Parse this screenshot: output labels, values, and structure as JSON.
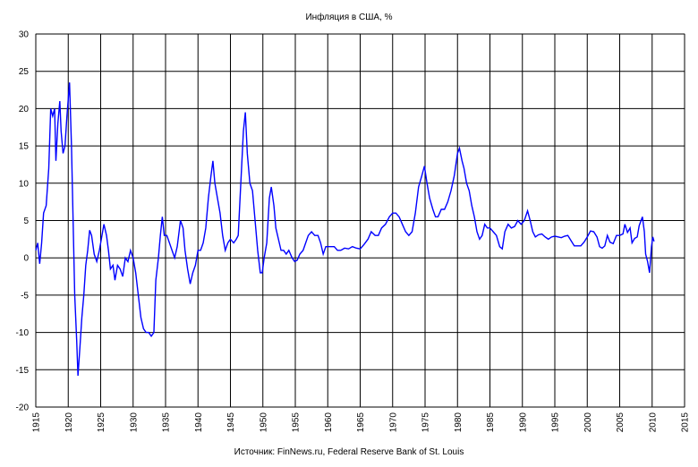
{
  "chart_data": {
    "type": "line",
    "title": "Инфляция в США, %",
    "source": "Источник: FinNews.ru, Federal Reserve Bank of St. Louis",
    "xlim": [
      1915,
      2015
    ],
    "xticks": [
      1915,
      1920,
      1925,
      1930,
      1935,
      1940,
      1945,
      1950,
      1955,
      1960,
      1965,
      1970,
      1975,
      1980,
      1985,
      1990,
      1995,
      2000,
      2005,
      2010,
      2015
    ],
    "ylim": [
      -20,
      30
    ],
    "yticks": [
      -20,
      -15,
      -10,
      -5,
      0,
      5,
      10,
      15,
      20,
      25,
      30
    ],
    "grid": true,
    "color": "#0000ff",
    "x": [
      1915.0,
      1915.3,
      1915.6,
      1915.9,
      1916.2,
      1916.6,
      1917.0,
      1917.3,
      1917.6,
      1917.9,
      1918.1,
      1918.4,
      1918.7,
      1918.9,
      1919.2,
      1919.5,
      1919.8,
      1920.2,
      1920.5,
      1920.8,
      1921.0,
      1921.3,
      1921.5,
      1921.8,
      1922.1,
      1922.4,
      1922.7,
      1923.0,
      1923.3,
      1923.6,
      1924.0,
      1924.4,
      1924.8,
      1925.2,
      1925.5,
      1925.9,
      1926.2,
      1926.5,
      1926.9,
      1927.2,
      1927.6,
      1928.0,
      1928.4,
      1928.8,
      1929.2,
      1929.6,
      1930.0,
      1930.4,
      1930.8,
      1931.2,
      1931.6,
      1932.0,
      1932.4,
      1932.8,
      1933.2,
      1933.5,
      1933.9,
      1934.2,
      1934.5,
      1934.8,
      1935.2,
      1935.6,
      1936.0,
      1936.4,
      1936.8,
      1937.3,
      1937.7,
      1938.0,
      1938.4,
      1938.8,
      1939.2,
      1939.6,
      1940.0,
      1940.4,
      1940.8,
      1941.2,
      1941.6,
      1942.0,
      1942.3,
      1942.6,
      1943.0,
      1943.4,
      1943.8,
      1944.2,
      1944.6,
      1945.0,
      1945.5,
      1945.9,
      1946.2,
      1946.6,
      1947.0,
      1947.3,
      1947.6,
      1948.0,
      1948.4,
      1948.8,
      1949.2,
      1949.6,
      1949.9,
      1950.2,
      1950.6,
      1951.0,
      1951.3,
      1951.7,
      1952.0,
      1952.4,
      1952.8,
      1953.2,
      1953.6,
      1954.0,
      1954.5,
      1954.9,
      1955.3,
      1955.7,
      1956.2,
      1956.6,
      1957.0,
      1957.5,
      1958.0,
      1958.5,
      1958.9,
      1959.3,
      1959.7,
      1960.2,
      1960.6,
      1961.0,
      1961.5,
      1962.0,
      1962.6,
      1963.2,
      1963.8,
      1964.4,
      1965.0,
      1965.6,
      1966.2,
      1966.7,
      1967.3,
      1967.8,
      1968.3,
      1968.9,
      1969.5,
      1970.0,
      1970.5,
      1971.0,
      1971.5,
      1972.0,
      1972.5,
      1973.0,
      1973.5,
      1974.0,
      1974.5,
      1974.9,
      1975.3,
      1975.7,
      1976.2,
      1976.6,
      1977.0,
      1977.5,
      1978.0,
      1978.5,
      1979.0,
      1979.5,
      1980.0,
      1980.3,
      1980.7,
      1981.0,
      1981.4,
      1981.8,
      1982.2,
      1982.6,
      1983.0,
      1983.4,
      1983.8,
      1984.2,
      1984.6,
      1985.0,
      1985.5,
      1986.0,
      1986.5,
      1986.9,
      1987.3,
      1987.8,
      1988.3,
      1988.8,
      1989.3,
      1989.8,
      1990.3,
      1990.8,
      1991.2,
      1991.6,
      1992.0,
      1992.5,
      1993.0,
      1993.5,
      1994.0,
      1994.5,
      1995.0,
      1995.5,
      1996.0,
      1996.5,
      1997.0,
      1997.5,
      1998.0,
      1998.5,
      1999.0,
      1999.5,
      2000.0,
      2000.5,
      2001.0,
      2001.5,
      2001.9,
      2002.3,
      2002.7,
      2003.1,
      2003.5,
      2004.0,
      2004.5,
      2005.0,
      2005.5,
      2005.8,
      2006.2,
      2006.6,
      2006.9,
      2007.3,
      2007.7,
      2008.0,
      2008.5,
      2008.8,
      2009.0,
      2009.3,
      2009.6,
      2009.9,
      2010.1,
      2010.3
    ],
    "values": [
      1.0,
      2.0,
      -0.8,
      2.0,
      6.0,
      7.0,
      12.0,
      20.0,
      19.0,
      20.0,
      13.0,
      18.0,
      21.0,
      17.0,
      14.0,
      15.0,
      19.0,
      23.5,
      15.0,
      3.0,
      -5.0,
      -11.0,
      -15.8,
      -12.0,
      -8.0,
      -5.0,
      -1.0,
      1.0,
      3.7,
      3.0,
      0.5,
      -0.5,
      1.0,
      3.0,
      4.5,
      3.0,
      1.0,
      -1.5,
      -1.0,
      -3.0,
      -1.0,
      -1.5,
      -2.5,
      0.0,
      -0.5,
      1.0,
      0.0,
      -2.0,
      -5.0,
      -8.0,
      -9.5,
      -10.0,
      -10.0,
      -10.5,
      -10.0,
      -3.0,
      0.0,
      3.0,
      5.5,
      3.0,
      3.0,
      2.0,
      1.0,
      0.0,
      1.5,
      5.0,
      4.0,
      1.0,
      -1.5,
      -3.5,
      -2.0,
      -1.0,
      1.0,
      1.0,
      2.0,
      4.0,
      8.0,
      11.0,
      13.0,
      10.0,
      8.0,
      6.0,
      3.0,
      1.0,
      2.0,
      2.5,
      2.0,
      2.5,
      3.0,
      10.0,
      17.0,
      19.5,
      14.0,
      10.0,
      9.0,
      5.0,
      1.0,
      -2.0,
      -2.0,
      0.0,
      2.0,
      8.0,
      9.5,
      7.0,
      4.0,
      2.5,
      1.0,
      1.0,
      0.5,
      1.0,
      0.0,
      -0.5,
      -0.3,
      0.5,
      1.0,
      2.0,
      3.0,
      3.5,
      3.0,
      3.0,
      2.0,
      0.5,
      1.5,
      1.5,
      1.5,
      1.5,
      1.0,
      1.0,
      1.3,
      1.2,
      1.5,
      1.3,
      1.2,
      1.8,
      2.5,
      3.5,
      3.0,
      3.0,
      4.0,
      4.5,
      5.5,
      6.0,
      6.0,
      5.5,
      4.5,
      3.5,
      3.0,
      3.5,
      6.0,
      9.5,
      11.0,
      12.3,
      10.0,
      8.0,
      6.5,
      5.5,
      5.5,
      6.5,
      6.5,
      7.5,
      9.0,
      11.0,
      14.0,
      14.7,
      13.0,
      12.0,
      10.0,
      9.0,
      7.0,
      5.5,
      3.5,
      2.5,
      3.0,
      4.5,
      4.0,
      4.0,
      3.5,
      3.0,
      1.5,
      1.2,
      3.5,
      4.5,
      4.0,
      4.2,
      5.0,
      4.5,
      5.0,
      6.3,
      5.0,
      3.5,
      2.8,
      3.1,
      3.2,
      2.8,
      2.5,
      2.8,
      2.9,
      2.8,
      2.7,
      2.9,
      3.0,
      2.3,
      1.6,
      1.6,
      1.6,
      2.1,
      2.8,
      3.6,
      3.5,
      2.8,
      1.5,
      1.3,
      1.6,
      3.0,
      2.1,
      1.9,
      3.0,
      3.0,
      3.2,
      4.5,
      3.4,
      4.0,
      2.0,
      2.6,
      2.8,
      4.3,
      5.5,
      3.5,
      0.5,
      -0.5,
      -2.0,
      1.5,
      2.8,
      2.2
    ]
  }
}
